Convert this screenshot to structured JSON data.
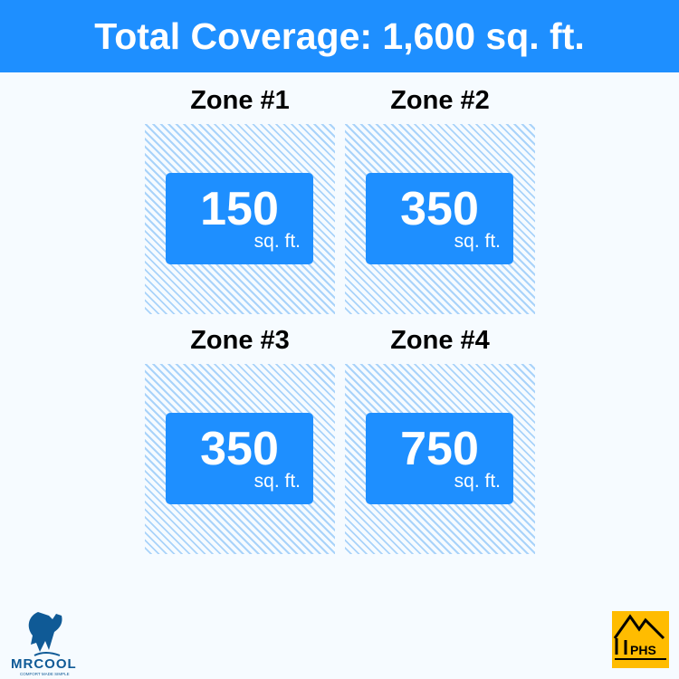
{
  "header": {
    "title": "Total Coverage: 1,600 sq. ft."
  },
  "zones": [
    {
      "title": "Zone #1",
      "value": "150",
      "unit": "sq. ft."
    },
    {
      "title": "Zone #2",
      "value": "350",
      "unit": "sq. ft."
    },
    {
      "title": "Zone #3",
      "value": "350",
      "unit": "sq. ft."
    },
    {
      "title": "Zone #4",
      "value": "750",
      "unit": "sq. ft."
    }
  ],
  "logos": {
    "left": {
      "name": "MRCOOL",
      "tagline": "COMFORT MADE SIMPLE"
    },
    "right": {
      "name": "PHS"
    }
  },
  "colors": {
    "accent": "#1e8fff",
    "hatch": "#a9d3fa",
    "logo_right_bg": "#ffbc00",
    "logo_left": "#0f5a96"
  }
}
